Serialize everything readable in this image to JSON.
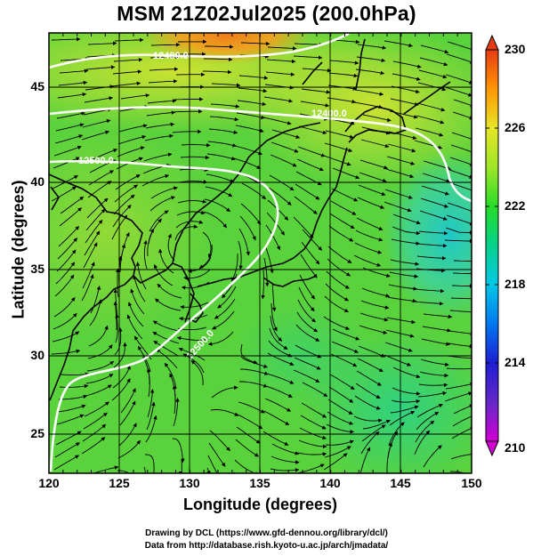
{
  "title": "MSM 21Z02Jul2025 (200.0hPa)",
  "x_axis": {
    "label": "Longitude (degrees)",
    "ticks": [
      "120",
      "125",
      "130",
      "135",
      "140",
      "145",
      "150"
    ],
    "range": [
      120,
      150
    ]
  },
  "y_axis": {
    "label": "Latitude  (degrees)",
    "ticks": [
      "25",
      "30",
      "35",
      "40",
      "45"
    ],
    "range": [
      22.4,
      47.6
    ]
  },
  "colorbar": {
    "ticks": [
      "230",
      "226",
      "222",
      "218",
      "214",
      "210"
    ],
    "range": [
      210,
      230
    ],
    "colors": [
      "#d200d2",
      "#1e1ed2",
      "#00b4ff",
      "#00d278",
      "#28dc28",
      "#d2e628",
      "#ff9600",
      "#e63c14"
    ]
  },
  "contours": {
    "labels": [
      "12400.0",
      "12500.0",
      "12500.0",
      "12500.0"
    ],
    "color": "#ffffff"
  },
  "credits": {
    "line1": "Drawing by DCL (https://www.gfd-dennou.org/library/dcl/)",
    "line2": "Data from http://database.rish.kyoto-u.ac.jp/arch/jmadata/"
  }
}
